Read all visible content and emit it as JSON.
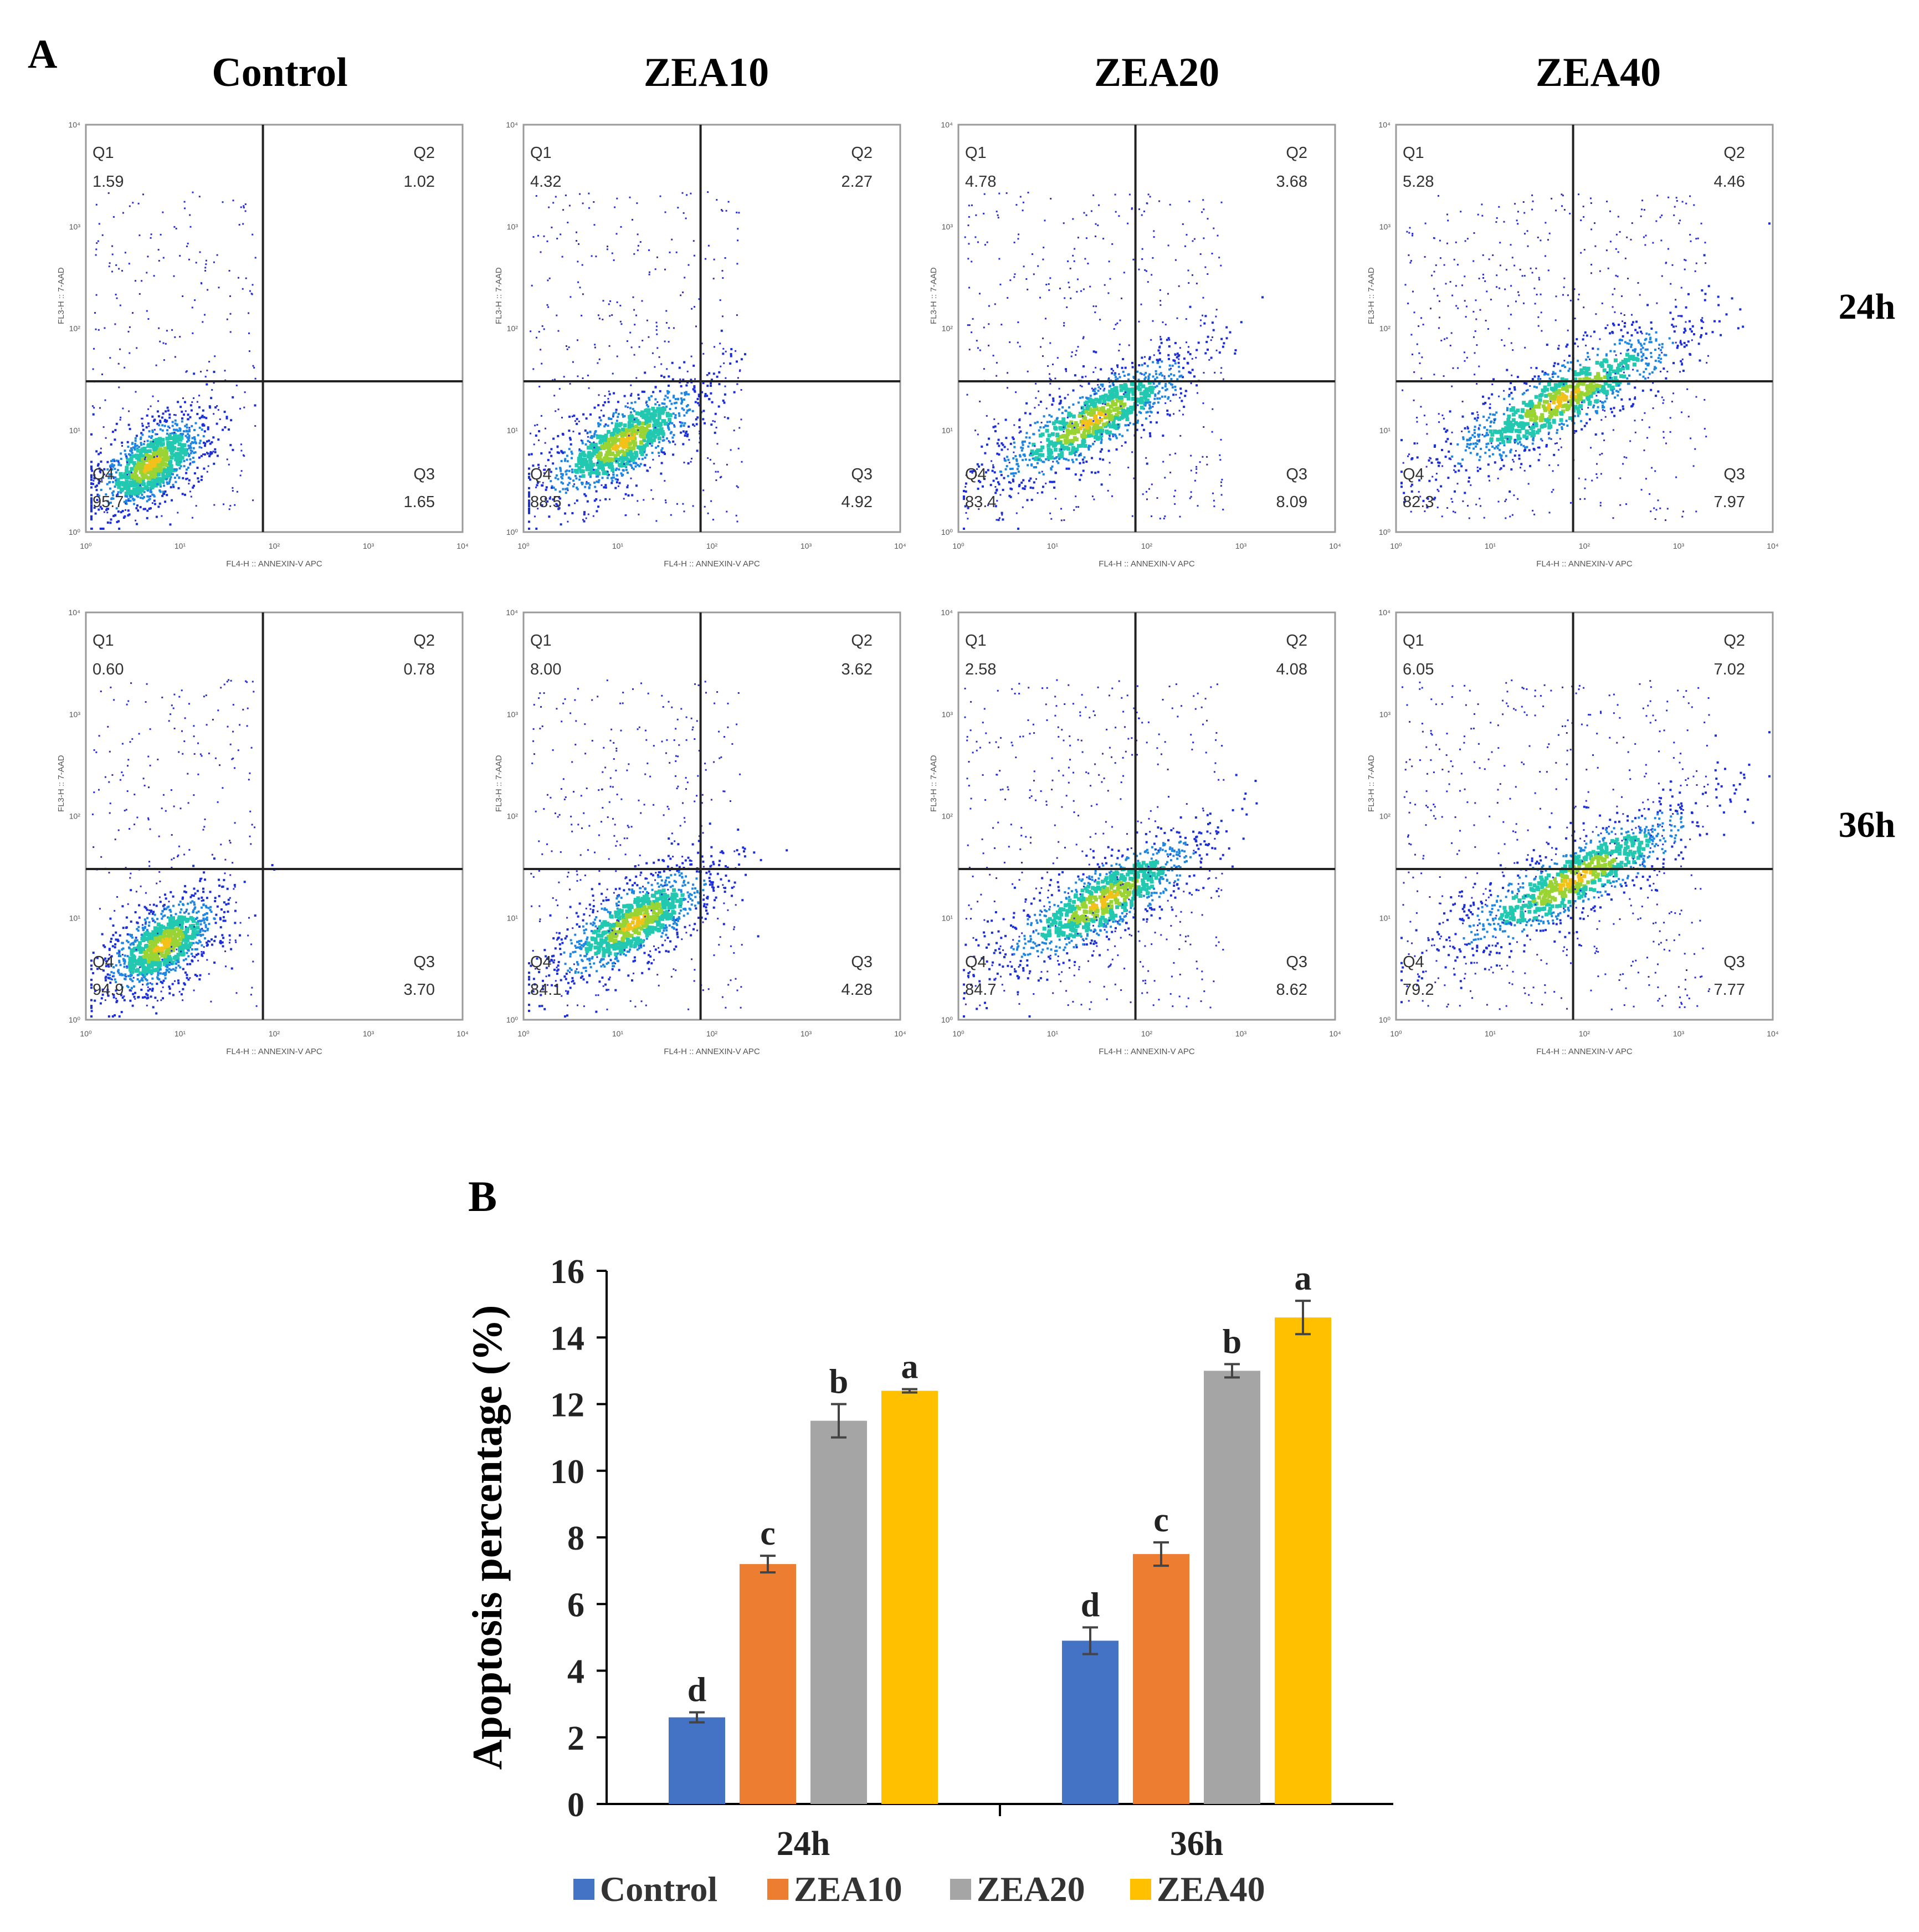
{
  "panel_a": {
    "label": "A",
    "columns": [
      "Control",
      "ZEA10",
      "ZEA20",
      "ZEA40"
    ],
    "rows": [
      "24h",
      "36h"
    ],
    "x_axis_title": "FL4-H :: ANNEXIN-V APC",
    "y_axis_title": "FL3-H :: 7-AAD",
    "tick_labels": [
      "10⁰",
      "10¹",
      "10²",
      "10³",
      "10⁴"
    ],
    "quadrant_names": [
      "Q1",
      "Q2",
      "Q3",
      "Q4"
    ],
    "plots": [
      {
        "row": "24h",
        "group": "Control",
        "Q1": "1.59",
        "Q2": "1.02",
        "Q3": "1.65",
        "Q4": "95.7"
      },
      {
        "row": "24h",
        "group": "ZEA10",
        "Q1": "4.32",
        "Q2": "2.27",
        "Q3": "4.92",
        "Q4": "88.5"
      },
      {
        "row": "24h",
        "group": "ZEA20",
        "Q1": "4.78",
        "Q2": "3.68",
        "Q3": "8.09",
        "Q4": "83.4"
      },
      {
        "row": "24h",
        "group": "ZEA40",
        "Q1": "5.28",
        "Q2": "4.46",
        "Q3": "7.97",
        "Q4": "82.3"
      },
      {
        "row": "36h",
        "group": "Control",
        "Q1": "0.60",
        "Q2": "0.78",
        "Q3": "3.70",
        "Q4": "94.9"
      },
      {
        "row": "36h",
        "group": "ZEA10",
        "Q1": "8.00",
        "Q2": "3.62",
        "Q3": "4.28",
        "Q4": "84.1"
      },
      {
        "row": "36h",
        "group": "ZEA20",
        "Q1": "2.58",
        "Q2": "4.08",
        "Q3": "8.62",
        "Q4": "84.7"
      },
      {
        "row": "36h",
        "group": "ZEA40",
        "Q1": "6.05",
        "Q2": "7.02",
        "Q3": "7.77",
        "Q4": "79.2"
      }
    ]
  },
  "panel_b": {
    "label": "B"
  },
  "chart_data": {
    "type": "bar",
    "title": "",
    "xlabel": "",
    "ylabel": "Apoptosis percentage (%)",
    "ylim": [
      0,
      16
    ],
    "yticks": [
      0,
      2,
      4,
      6,
      8,
      10,
      12,
      14,
      16
    ],
    "categories": [
      "24h",
      "36h"
    ],
    "series": [
      {
        "name": "Control",
        "color": "#4472C4",
        "values": [
          2.6,
          4.9
        ],
        "errors": [
          0.15,
          0.4
        ],
        "letters": [
          "d",
          "d"
        ]
      },
      {
        "name": "ZEA10",
        "color": "#ED7D31",
        "values": [
          7.2,
          7.5
        ],
        "errors": [
          0.25,
          0.35
        ],
        "letters": [
          "c",
          "c"
        ]
      },
      {
        "name": "ZEA20",
        "color": "#A5A5A5",
        "values": [
          11.5,
          13.0
        ],
        "errors": [
          0.5,
          0.2
        ],
        "letters": [
          "b",
          "b"
        ]
      },
      {
        "name": "ZEA40",
        "color": "#FFC000",
        "values": [
          12.4,
          14.6
        ],
        "errors": [
          0.05,
          0.5
        ],
        "letters": [
          "a",
          "a"
        ]
      }
    ],
    "legend_position": "bottom"
  }
}
